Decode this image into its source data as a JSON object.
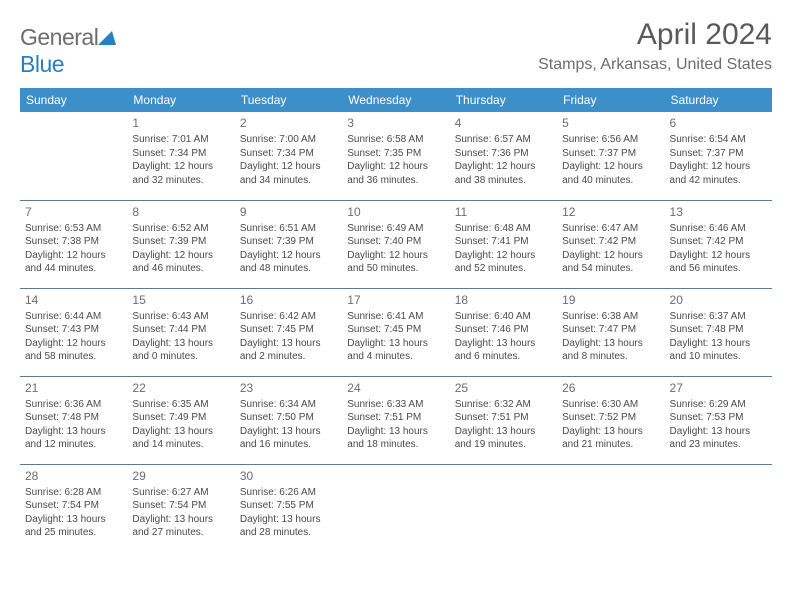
{
  "logo": {
    "word1": "General",
    "word2": "Blue"
  },
  "title": "April 2024",
  "location": "Stamps, Arkansas, United States",
  "colors": {
    "header_bg": "#3d8fc9",
    "header_text": "#ffffff",
    "row_border": "#5a7a95",
    "body_text": "#4a4a4a",
    "title_text": "#5a5a5a",
    "logo_gray": "#6d6d6d",
    "logo_blue": "#2a7fbf"
  },
  "weekdays": [
    "Sunday",
    "Monday",
    "Tuesday",
    "Wednesday",
    "Thursday",
    "Friday",
    "Saturday"
  ],
  "grid": [
    [
      null,
      {
        "n": "1",
        "sr": "Sunrise: 7:01 AM",
        "ss": "Sunset: 7:34 PM",
        "d1": "Daylight: 12 hours",
        "d2": "and 32 minutes."
      },
      {
        "n": "2",
        "sr": "Sunrise: 7:00 AM",
        "ss": "Sunset: 7:34 PM",
        "d1": "Daylight: 12 hours",
        "d2": "and 34 minutes."
      },
      {
        "n": "3",
        "sr": "Sunrise: 6:58 AM",
        "ss": "Sunset: 7:35 PM",
        "d1": "Daylight: 12 hours",
        "d2": "and 36 minutes."
      },
      {
        "n": "4",
        "sr": "Sunrise: 6:57 AM",
        "ss": "Sunset: 7:36 PM",
        "d1": "Daylight: 12 hours",
        "d2": "and 38 minutes."
      },
      {
        "n": "5",
        "sr": "Sunrise: 6:56 AM",
        "ss": "Sunset: 7:37 PM",
        "d1": "Daylight: 12 hours",
        "d2": "and 40 minutes."
      },
      {
        "n": "6",
        "sr": "Sunrise: 6:54 AM",
        "ss": "Sunset: 7:37 PM",
        "d1": "Daylight: 12 hours",
        "d2": "and 42 minutes."
      }
    ],
    [
      {
        "n": "7",
        "sr": "Sunrise: 6:53 AM",
        "ss": "Sunset: 7:38 PM",
        "d1": "Daylight: 12 hours",
        "d2": "and 44 minutes."
      },
      {
        "n": "8",
        "sr": "Sunrise: 6:52 AM",
        "ss": "Sunset: 7:39 PM",
        "d1": "Daylight: 12 hours",
        "d2": "and 46 minutes."
      },
      {
        "n": "9",
        "sr": "Sunrise: 6:51 AM",
        "ss": "Sunset: 7:39 PM",
        "d1": "Daylight: 12 hours",
        "d2": "and 48 minutes."
      },
      {
        "n": "10",
        "sr": "Sunrise: 6:49 AM",
        "ss": "Sunset: 7:40 PM",
        "d1": "Daylight: 12 hours",
        "d2": "and 50 minutes."
      },
      {
        "n": "11",
        "sr": "Sunrise: 6:48 AM",
        "ss": "Sunset: 7:41 PM",
        "d1": "Daylight: 12 hours",
        "d2": "and 52 minutes."
      },
      {
        "n": "12",
        "sr": "Sunrise: 6:47 AM",
        "ss": "Sunset: 7:42 PM",
        "d1": "Daylight: 12 hours",
        "d2": "and 54 minutes."
      },
      {
        "n": "13",
        "sr": "Sunrise: 6:46 AM",
        "ss": "Sunset: 7:42 PM",
        "d1": "Daylight: 12 hours",
        "d2": "and 56 minutes."
      }
    ],
    [
      {
        "n": "14",
        "sr": "Sunrise: 6:44 AM",
        "ss": "Sunset: 7:43 PM",
        "d1": "Daylight: 12 hours",
        "d2": "and 58 minutes."
      },
      {
        "n": "15",
        "sr": "Sunrise: 6:43 AM",
        "ss": "Sunset: 7:44 PM",
        "d1": "Daylight: 13 hours",
        "d2": "and 0 minutes."
      },
      {
        "n": "16",
        "sr": "Sunrise: 6:42 AM",
        "ss": "Sunset: 7:45 PM",
        "d1": "Daylight: 13 hours",
        "d2": "and 2 minutes."
      },
      {
        "n": "17",
        "sr": "Sunrise: 6:41 AM",
        "ss": "Sunset: 7:45 PM",
        "d1": "Daylight: 13 hours",
        "d2": "and 4 minutes."
      },
      {
        "n": "18",
        "sr": "Sunrise: 6:40 AM",
        "ss": "Sunset: 7:46 PM",
        "d1": "Daylight: 13 hours",
        "d2": "and 6 minutes."
      },
      {
        "n": "19",
        "sr": "Sunrise: 6:38 AM",
        "ss": "Sunset: 7:47 PM",
        "d1": "Daylight: 13 hours",
        "d2": "and 8 minutes."
      },
      {
        "n": "20",
        "sr": "Sunrise: 6:37 AM",
        "ss": "Sunset: 7:48 PM",
        "d1": "Daylight: 13 hours",
        "d2": "and 10 minutes."
      }
    ],
    [
      {
        "n": "21",
        "sr": "Sunrise: 6:36 AM",
        "ss": "Sunset: 7:48 PM",
        "d1": "Daylight: 13 hours",
        "d2": "and 12 minutes."
      },
      {
        "n": "22",
        "sr": "Sunrise: 6:35 AM",
        "ss": "Sunset: 7:49 PM",
        "d1": "Daylight: 13 hours",
        "d2": "and 14 minutes."
      },
      {
        "n": "23",
        "sr": "Sunrise: 6:34 AM",
        "ss": "Sunset: 7:50 PM",
        "d1": "Daylight: 13 hours",
        "d2": "and 16 minutes."
      },
      {
        "n": "24",
        "sr": "Sunrise: 6:33 AM",
        "ss": "Sunset: 7:51 PM",
        "d1": "Daylight: 13 hours",
        "d2": "and 18 minutes."
      },
      {
        "n": "25",
        "sr": "Sunrise: 6:32 AM",
        "ss": "Sunset: 7:51 PM",
        "d1": "Daylight: 13 hours",
        "d2": "and 19 minutes."
      },
      {
        "n": "26",
        "sr": "Sunrise: 6:30 AM",
        "ss": "Sunset: 7:52 PM",
        "d1": "Daylight: 13 hours",
        "d2": "and 21 minutes."
      },
      {
        "n": "27",
        "sr": "Sunrise: 6:29 AM",
        "ss": "Sunset: 7:53 PM",
        "d1": "Daylight: 13 hours",
        "d2": "and 23 minutes."
      }
    ],
    [
      {
        "n": "28",
        "sr": "Sunrise: 6:28 AM",
        "ss": "Sunset: 7:54 PM",
        "d1": "Daylight: 13 hours",
        "d2": "and 25 minutes."
      },
      {
        "n": "29",
        "sr": "Sunrise: 6:27 AM",
        "ss": "Sunset: 7:54 PM",
        "d1": "Daylight: 13 hours",
        "d2": "and 27 minutes."
      },
      {
        "n": "30",
        "sr": "Sunrise: 6:26 AM",
        "ss": "Sunset: 7:55 PM",
        "d1": "Daylight: 13 hours",
        "d2": "and 28 minutes."
      },
      null,
      null,
      null,
      null
    ]
  ]
}
